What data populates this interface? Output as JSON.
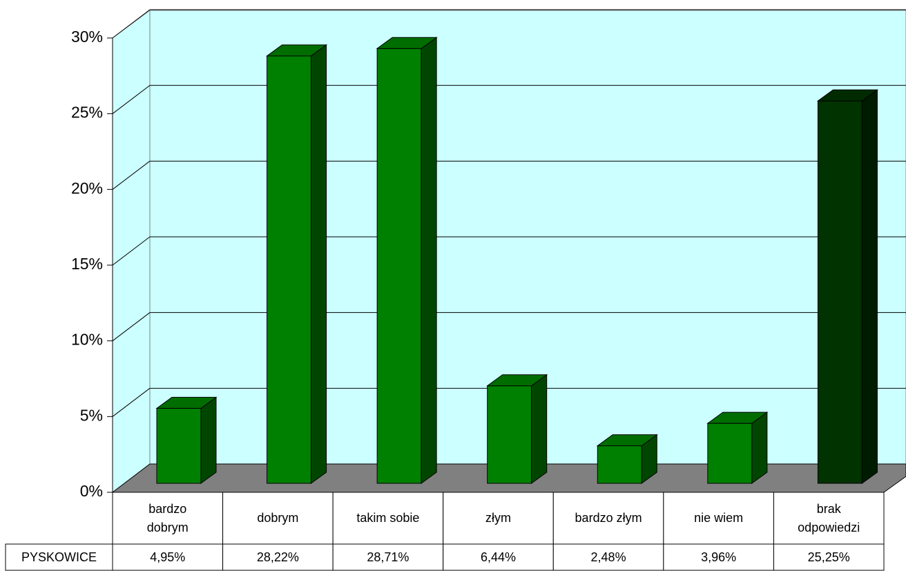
{
  "chart_data": {
    "type": "bar3d",
    "categories": [
      "bardzo dobrym",
      "dobrym",
      "takim sobie",
      "złym",
      "bardzo złym",
      "nie wiem",
      "brak odpowiedzi"
    ],
    "series": [
      {
        "name": "PYSKOWICE",
        "colors": [
          "#008000",
          "#008000",
          "#008000",
          "#008000",
          "#008000",
          "#008000",
          "#003300"
        ],
        "values": [
          4.95,
          28.22,
          28.71,
          6.44,
          2.48,
          3.96,
          25.25
        ],
        "value_labels": [
          "4,95%",
          "28,22%",
          "28,71%",
          "6,44%",
          "2,48%",
          "3,96%",
          "25,25%"
        ]
      }
    ],
    "ylim": [
      0,
      30
    ],
    "yticks": [
      {
        "value": 0,
        "label": "0%"
      },
      {
        "value": 5,
        "label": "5%"
      },
      {
        "value": 10,
        "label": "10%"
      },
      {
        "value": 15,
        "label": "15%"
      },
      {
        "value": 20,
        "label": "20%"
      },
      {
        "value": 25,
        "label": "25%"
      },
      {
        "value": 30,
        "label": "30%"
      }
    ],
    "grid": true
  }
}
